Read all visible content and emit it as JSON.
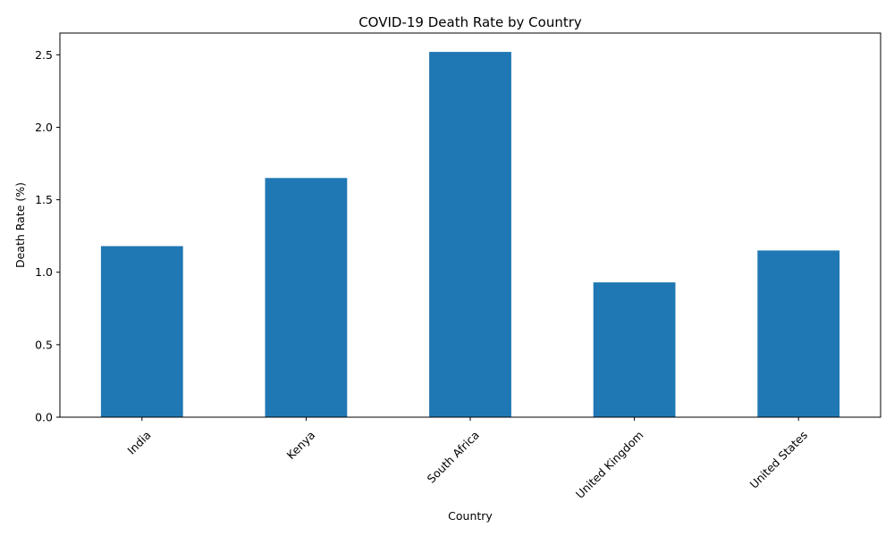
{
  "chart_data": {
    "type": "bar",
    "title": "COVID-19 Death Rate by Country",
    "xlabel": "Country",
    "ylabel": "Death Rate (%)",
    "categories": [
      "India",
      "Kenya",
      "South Africa",
      "United Kingdom",
      "United States"
    ],
    "values": [
      1.18,
      1.65,
      2.52,
      0.93,
      1.15
    ],
    "ylim": [
      0,
      2.65
    ],
    "yticks": [
      0.0,
      0.5,
      1.0,
      1.5,
      2.0,
      2.5
    ],
    "ytick_labels": [
      "0.0",
      "0.5",
      "1.0",
      "1.5",
      "2.0",
      "2.5"
    ],
    "bar_color": "#1f77b4",
    "grid": false,
    "legend": "none"
  }
}
